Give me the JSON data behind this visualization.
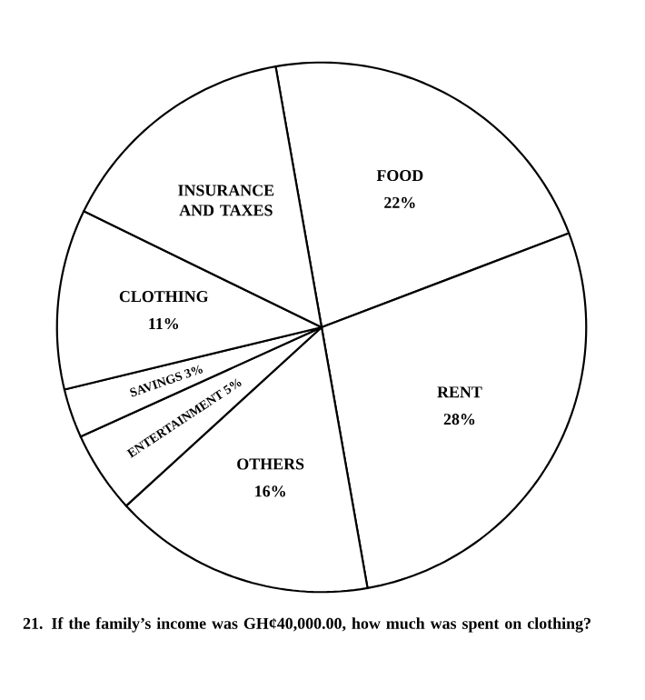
{
  "chart_data": {
    "type": "pie",
    "categories": [
      "FOOD",
      "RENT",
      "OTHERS",
      "ENTERTAINMENT",
      "SAVINGS",
      "CLOTHING",
      "INSURANCE AND TAXES"
    ],
    "values": [
      22,
      28,
      16,
      5,
      3,
      11,
      15
    ],
    "colors": [
      "#ffffff",
      "#ffffff",
      "#ffffff",
      "#ffffff",
      "#ffffff",
      "#ffffff",
      "#ffffff"
    ],
    "value_labels": [
      "22%",
      "28%",
      "16%",
      "5%",
      "3%",
      "11%",
      null
    ],
    "annotations": [
      "21. If the family’s income was GH¢40,000.00, how much was spent on clothing?"
    ]
  }
}
